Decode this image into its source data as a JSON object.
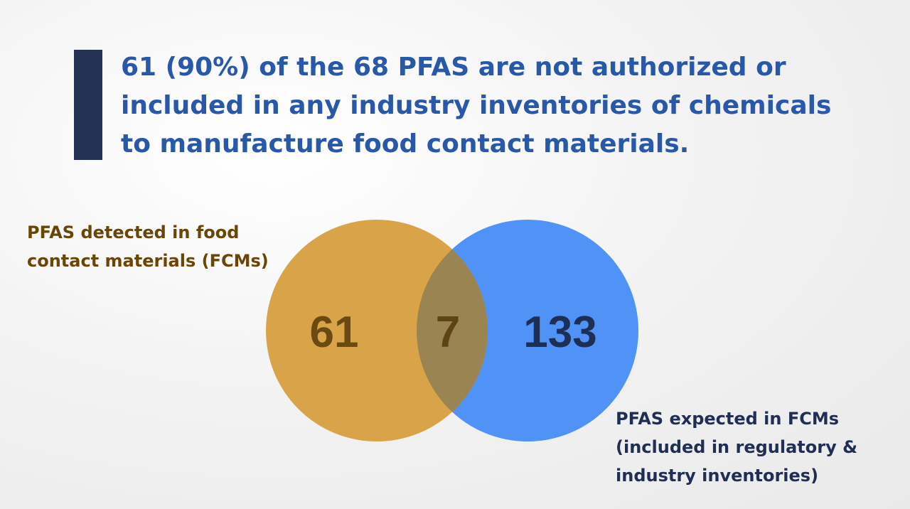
{
  "headline": {
    "lines": [
      "61 (90%) of the 68 PFAS are not authorized or",
      "included in any industry inventories of chemicals",
      "to manufacture food contact materials."
    ]
  },
  "venn": {
    "left_set": {
      "label_lines": [
        "PFAS detected in food",
        "contact materials (FCMs)"
      ],
      "count": "61",
      "color": "#d9a449"
    },
    "overlap": {
      "count": "7",
      "color": "#9a8452"
    },
    "right_set": {
      "label_lines": [
        "PFAS expected in FCMs",
        "(included in regulatory &",
        "industry inventories)"
      ],
      "count": "133",
      "color": "#5092f5"
    }
  },
  "colors": {
    "accent_bar": "#243354",
    "headline_text": "#2a58a8",
    "left_count_text": "#6b4a12",
    "overlap_count_text": "#5c4418",
    "right_count_text": "#1e2f56"
  }
}
